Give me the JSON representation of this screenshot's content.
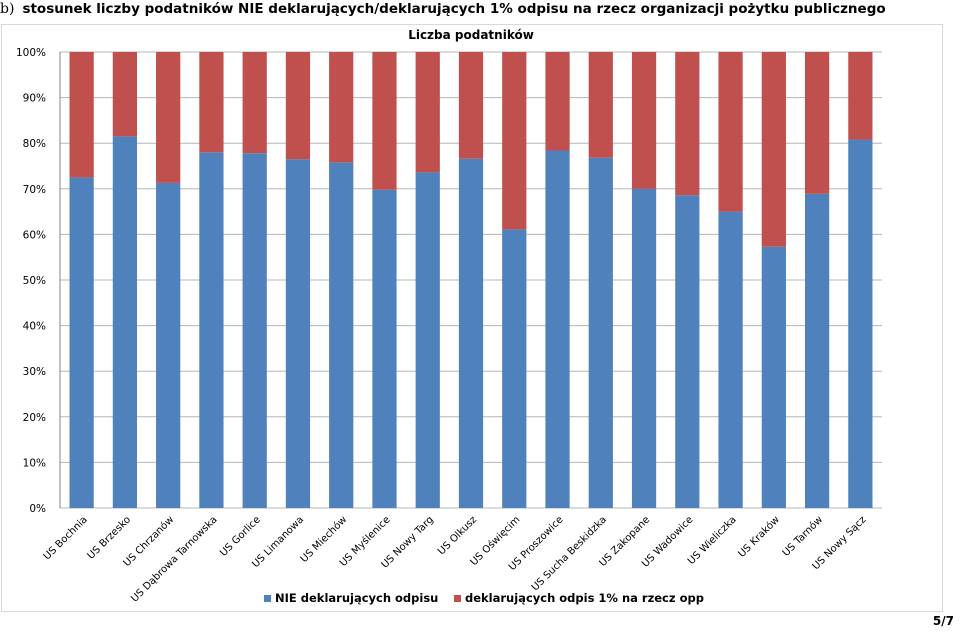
{
  "heading": {
    "marker": "b)",
    "text": "stosunek liczby podatników NIE deklarujących/deklarujących 1% odpisu na rzecz organizacji pożytku publicznego"
  },
  "page_number": "5/7",
  "colors": {
    "blue": "#4f81bd",
    "red": "#c0504d",
    "grid": "#b7b7b7"
  },
  "chart_data": {
    "type": "bar",
    "stacked": true,
    "title": "Liczba podatników",
    "xlabel": "",
    "ylabel": "",
    "ylim": [
      0,
      100
    ],
    "yticks": [
      "0%",
      "10%",
      "20%",
      "30%",
      "40%",
      "50%",
      "60%",
      "70%",
      "80%",
      "90%",
      "100%"
    ],
    "grid": true,
    "legend": "bottom",
    "categories": [
      "US Bochnia",
      "US Brzesko",
      "US Chrzanów",
      "US Dąbrowa Tarnowska",
      "US Gorlice",
      "US Limanowa",
      "US Miechów",
      "US Myślenice",
      "US Nowy Targ",
      "US Olkusz",
      "US Oświęcim",
      "US Proszowice",
      "US Sucha Beskidzka",
      "US Zakopane",
      "US Wadowice",
      "US Wieliczka",
      "US Kraków",
      "US Tarnów",
      "US Nowy Sącz"
    ],
    "series": [
      {
        "name": "NIE deklarujących odpisu",
        "color": "#4f81bd",
        "values": [
          72.5,
          81.5,
          71.3,
          78.0,
          77.8,
          76.5,
          75.8,
          69.8,
          73.6,
          76.6,
          61.1,
          78.4,
          76.8,
          70.0,
          68.6,
          65.0,
          57.3,
          68.9,
          80.8
        ]
      },
      {
        "name": "deklarujących odpis 1% na rzecz opp",
        "color": "#c0504d",
        "values": [
          27.5,
          18.5,
          28.7,
          22.0,
          22.2,
          23.5,
          24.2,
          30.2,
          26.4,
          23.4,
          38.9,
          21.6,
          23.2,
          30.0,
          31.4,
          35.0,
          42.7,
          31.1,
          19.2
        ]
      }
    ]
  }
}
